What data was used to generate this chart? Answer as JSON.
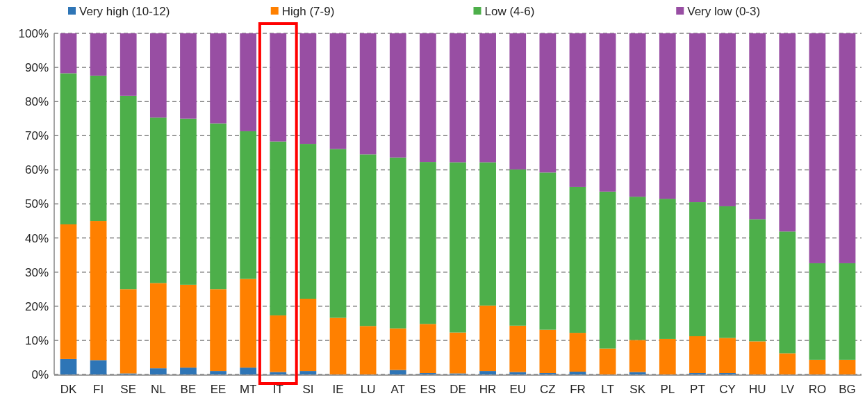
{
  "chart_data": {
    "type": "bar",
    "stacked": true,
    "categories": [
      "DK",
      "FI",
      "SE",
      "NL",
      "BE",
      "EE",
      "MT",
      "IT",
      "SI",
      "IE",
      "LU",
      "AT",
      "ES",
      "DE",
      "HR",
      "EU",
      "CZ",
      "FR",
      "LT",
      "SK",
      "PL",
      "PT",
      "CY",
      "HU",
      "LV",
      "RO",
      "BG"
    ],
    "series": [
      {
        "name": "Very high (10-12)",
        "color": "#2e75b6",
        "values": [
          4.5,
          4.2,
          0.3,
          1.8,
          2.0,
          1.0,
          2.0,
          0.7,
          1.0,
          0,
          0,
          1.3,
          0.4,
          0.3,
          1.0,
          0.7,
          0.4,
          0.8,
          0,
          0.7,
          0,
          0.4,
          0.4,
          0,
          0,
          0,
          0
        ]
      },
      {
        "name": "High (7-9)",
        "color": "#ff8000",
        "values": [
          39.5,
          40.8,
          24.7,
          25.0,
          24.3,
          24.0,
          26.0,
          16.6,
          21.2,
          16.6,
          14.2,
          12.2,
          14.4,
          12.0,
          19.2,
          13.6,
          12.7,
          11.4,
          7.6,
          9.4,
          10.4,
          10.8,
          10.3,
          9.7,
          6.2,
          4.3,
          4.3
        ]
      },
      {
        "name": "Low (4-6)",
        "color": "#4daf4a",
        "values": [
          44.3,
          42.6,
          56.7,
          48.5,
          48.7,
          48.6,
          43.3,
          51.0,
          45.4,
          49.5,
          50.3,
          50.1,
          47.5,
          49.9,
          42.0,
          45.8,
          46.1,
          42.8,
          46.0,
          42.0,
          41.1,
          39.3,
          38.6,
          35.8,
          35.7,
          28.3,
          28.3
        ]
      },
      {
        "name": "Very low (0-3)",
        "color": "#984ea3",
        "values": [
          11.7,
          12.4,
          18.3,
          24.7,
          25.0,
          26.4,
          28.7,
          31.7,
          32.4,
          33.9,
          35.5,
          36.4,
          37.7,
          37.8,
          37.8,
          39.9,
          40.8,
          45.0,
          46.4,
          47.9,
          48.5,
          49.5,
          50.7,
          54.5,
          58.1,
          67.4,
          67.4
        ]
      }
    ],
    "ylim": [
      0,
      100
    ],
    "yticks": [
      {
        "value": 0,
        "label": "0%"
      },
      {
        "value": 10,
        "label": "10%"
      },
      {
        "value": 20,
        "label": "20%"
      },
      {
        "value": 30,
        "label": "30%"
      },
      {
        "value": 40,
        "label": "40%"
      },
      {
        "value": 50,
        "label": "50%"
      },
      {
        "value": 60,
        "label": "60%"
      },
      {
        "value": 70,
        "label": "70%"
      },
      {
        "value": 80,
        "label": "80%"
      },
      {
        "value": 90,
        "label": "90%"
      },
      {
        "value": 100,
        "label": "100%"
      }
    ],
    "grid": "y",
    "legend": "top"
  }
}
